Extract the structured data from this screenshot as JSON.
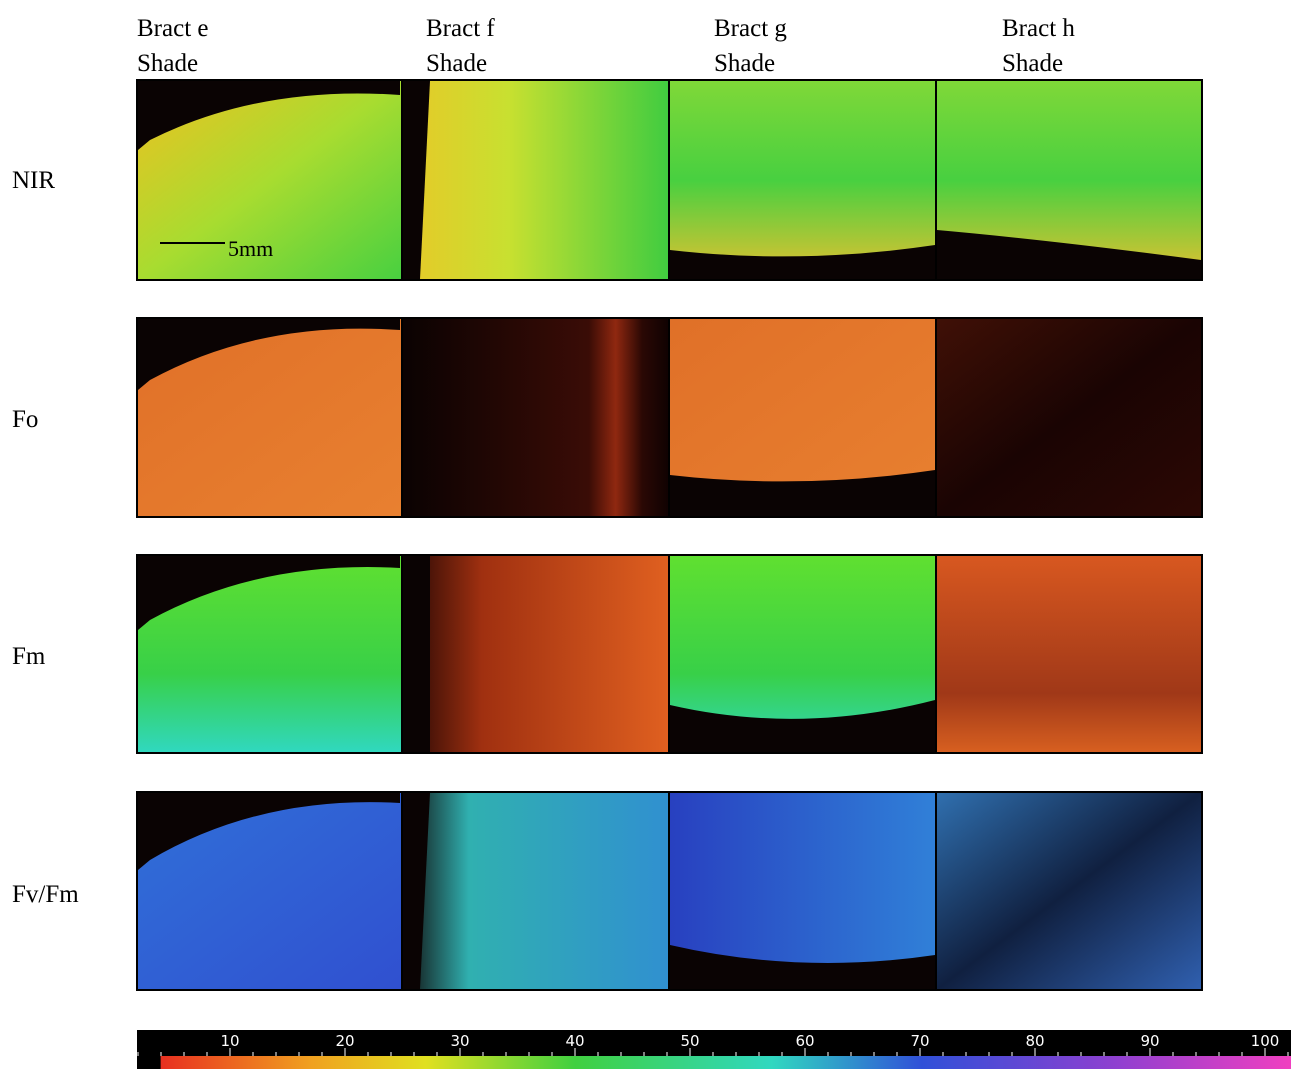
{
  "columns": [
    {
      "name": "Bract e",
      "condition": "Shade"
    },
    {
      "name": "Bract f",
      "condition": "Shade"
    },
    {
      "name": "Bract g",
      "condition": "Shade"
    },
    {
      "name": "Bract h",
      "condition": "Shade"
    }
  ],
  "rows": [
    "NIR",
    "Fo",
    "Fm",
    "Fv/Fm"
  ],
  "scale_bar": "5mm",
  "colorbar": {
    "xlim": [
      0,
      100
    ],
    "xticks": [
      10,
      20,
      30,
      40,
      50,
      60,
      70,
      80,
      90,
      100
    ]
  }
}
